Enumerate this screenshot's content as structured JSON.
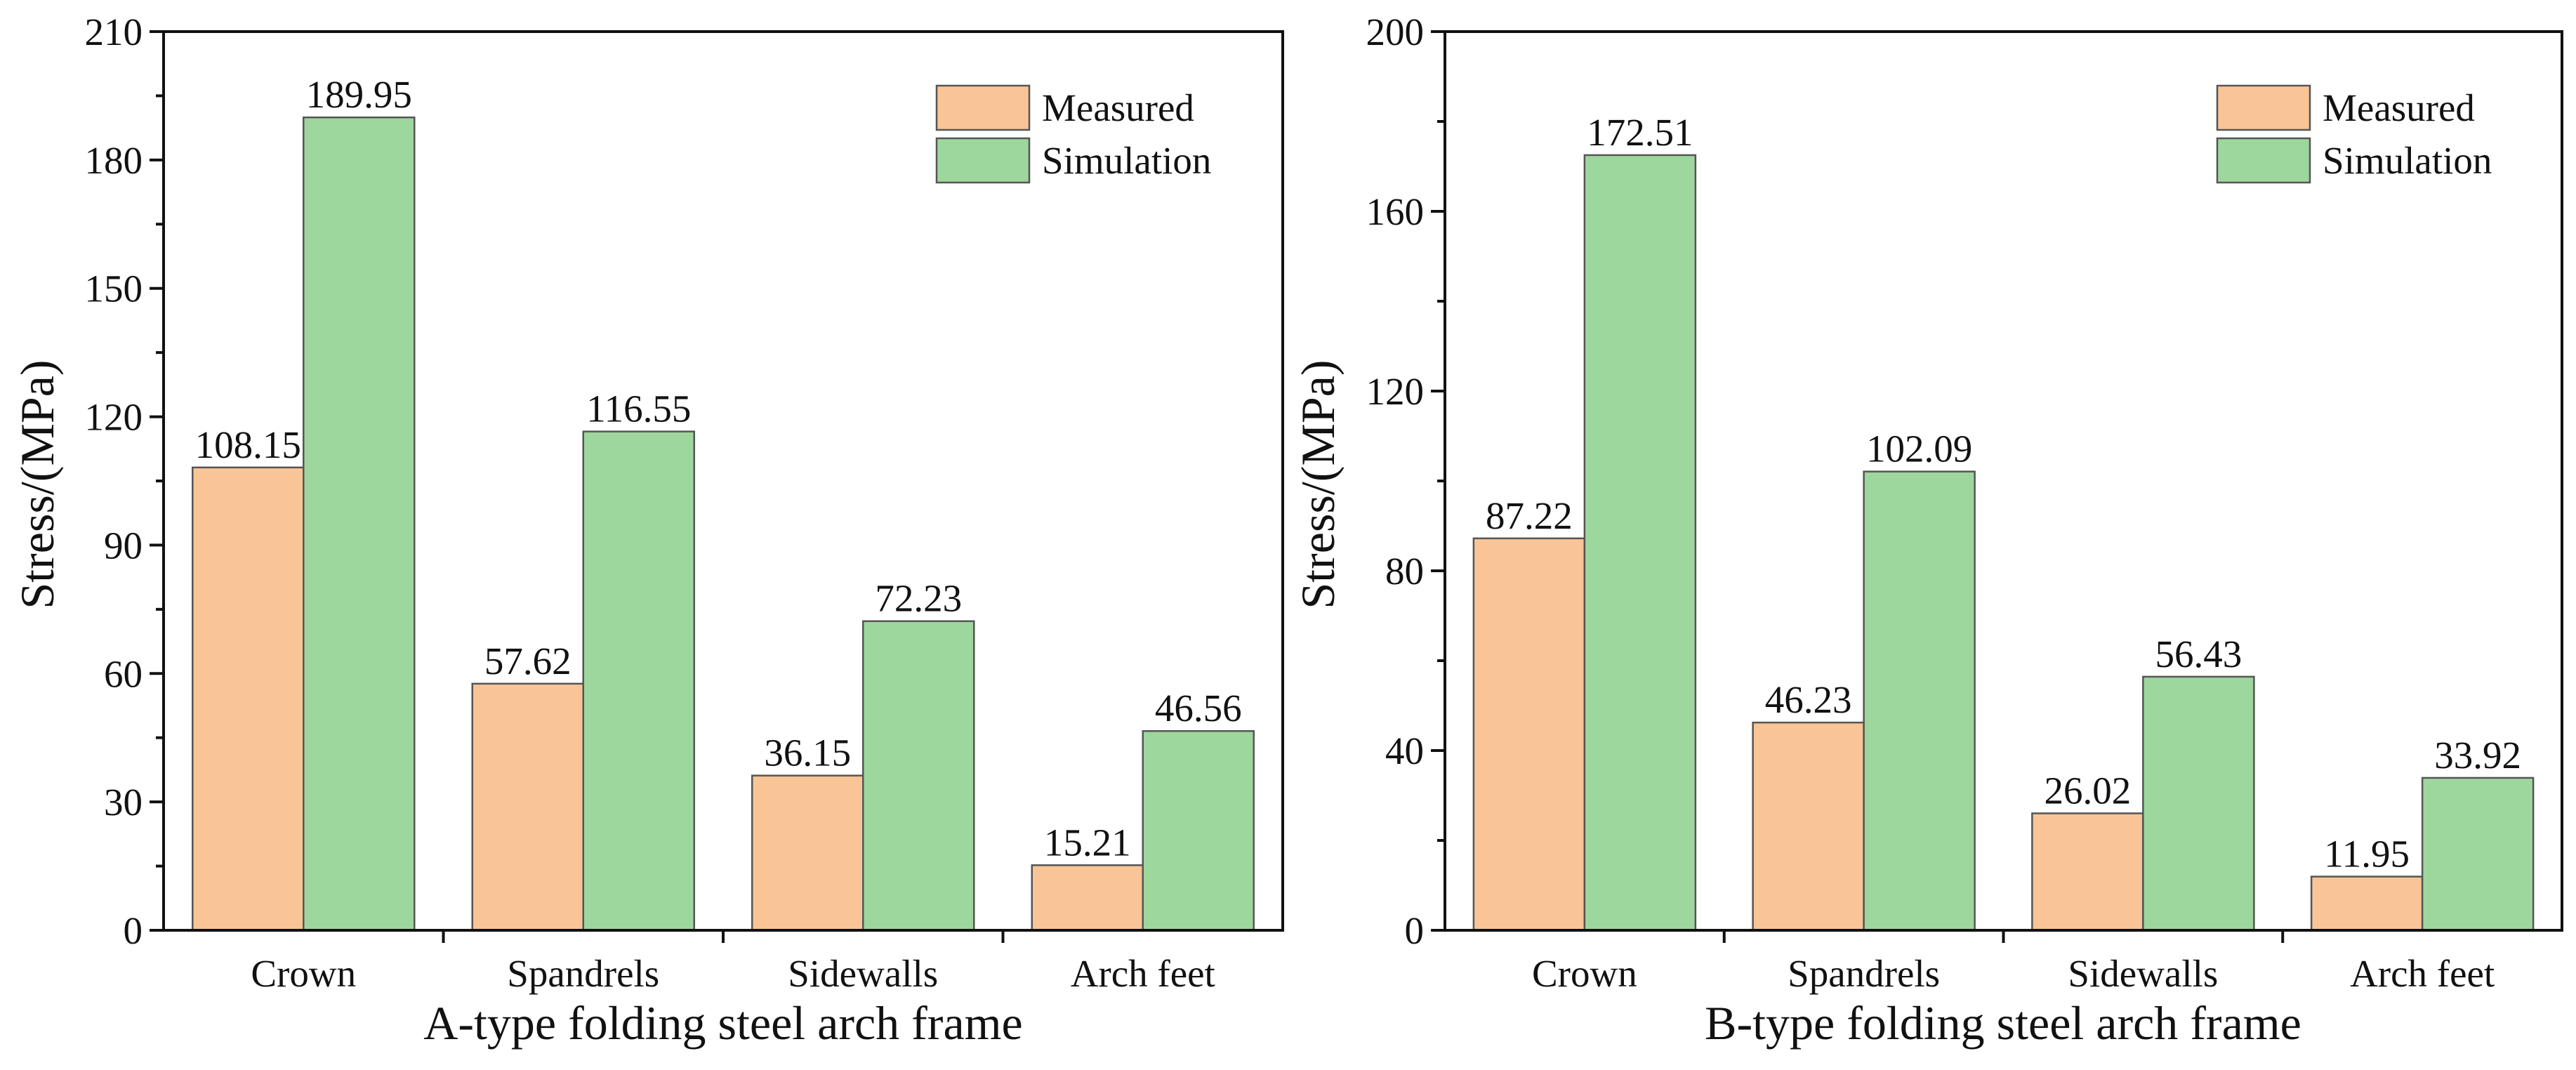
{
  "chart_data": [
    {
      "type": "bar",
      "title": "",
      "xlabel": "A-type folding steel arch frame",
      "ylabel": "Stress/(MPa)",
      "categories": [
        "Crown",
        "Spandrels",
        "Sidewalls",
        "Arch feet"
      ],
      "series": [
        {
          "name": "Measured",
          "values": [
            108.15,
            57.62,
            36.15,
            15.21
          ],
          "labels": [
            "108.15",
            "57.62",
            "36.15",
            "15.21"
          ]
        },
        {
          "name": "Simulation",
          "values": [
            189.95,
            116.55,
            72.23,
            46.56
          ],
          "labels": [
            "189.95",
            "116.55",
            "72.23",
            "46.56"
          ]
        }
      ],
      "ylim": [
        0,
        210
      ],
      "yticks": [
        0,
        30,
        60,
        90,
        120,
        150,
        180,
        210
      ],
      "ytick_labels": [
        "0",
        "30",
        "60",
        "90",
        "120",
        "150",
        "180",
        "210"
      ],
      "legend": "top-right",
      "grid": false
    },
    {
      "type": "bar",
      "title": "",
      "xlabel": "B-type folding steel arch frame",
      "ylabel": "Stress/(MPa)",
      "categories": [
        "Crown",
        "Spandrels",
        "Sidewalls",
        "Arch feet"
      ],
      "series": [
        {
          "name": "Measured",
          "values": [
            87.22,
            46.23,
            26.02,
            11.95
          ],
          "labels": [
            "87.22",
            "46.23",
            "26.02",
            "11.95"
          ]
        },
        {
          "name": "Simulation",
          "values": [
            172.51,
            102.09,
            56.43,
            33.92
          ],
          "labels": [
            "172.51",
            "102.09",
            "56.43",
            "33.92"
          ]
        }
      ],
      "ylim": [
        0,
        200
      ],
      "yticks": [
        0,
        40,
        80,
        120,
        160,
        200
      ],
      "ytick_labels": [
        "0",
        "40",
        "80",
        "120",
        "160",
        "200"
      ],
      "legend": "top-right",
      "grid": false
    }
  ],
  "colors": {
    "Measured": "#f9c597",
    "Simulation": "#9ed79d",
    "axis": "#111111",
    "bar_edge": "#555555"
  }
}
